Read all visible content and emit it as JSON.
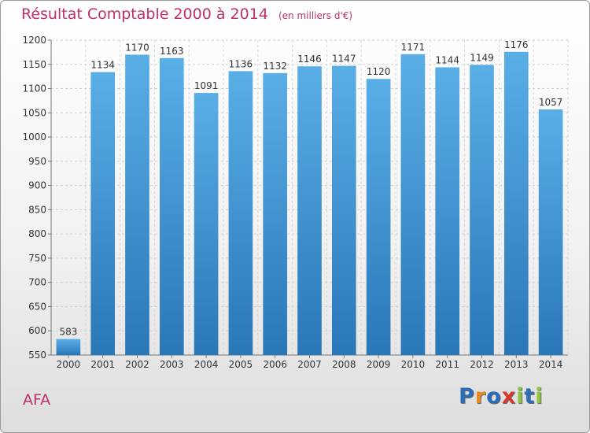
{
  "title": "Résultat Comptable 2000 à 2014",
  "unit": "(en milliers d'€)",
  "commune": "AFA",
  "brand": {
    "letters": [
      {
        "ch": "P",
        "color": "#2a6ebb"
      },
      {
        "ch": "r",
        "color": "#e8891d"
      },
      {
        "ch": "o",
        "color": "#2a6ebb"
      },
      {
        "ch": "x",
        "color": "#d63a2f"
      },
      {
        "ch": "i",
        "color": "#8cc63f"
      },
      {
        "ch": "t",
        "color": "#2a6ebb"
      },
      {
        "ch": "i",
        "color": "#8cc63f"
      }
    ]
  },
  "colors": {
    "title": "#c0306a",
    "bar_top": "#5aaee6",
    "bar_bottom": "#2a77b8"
  },
  "chart_data": {
    "type": "bar",
    "title": "Résultat Comptable 2000 à 2014",
    "categories": [
      "2000",
      "2001",
      "2002",
      "2003",
      "2004",
      "2005",
      "2006",
      "2007",
      "2008",
      "2009",
      "2010",
      "2011",
      "2012",
      "2013",
      "2014"
    ],
    "values": [
      583,
      1134,
      1170,
      1163,
      1091,
      1136,
      1132,
      1146,
      1147,
      1120,
      1171,
      1144,
      1149,
      1176,
      1057
    ],
    "ylim": [
      550,
      1200
    ],
    "yticks": [
      550,
      600,
      650,
      700,
      750,
      800,
      850,
      900,
      950,
      1000,
      1050,
      1100,
      1150,
      1200
    ],
    "grid": true,
    "xlabel": "",
    "ylabel": ""
  }
}
